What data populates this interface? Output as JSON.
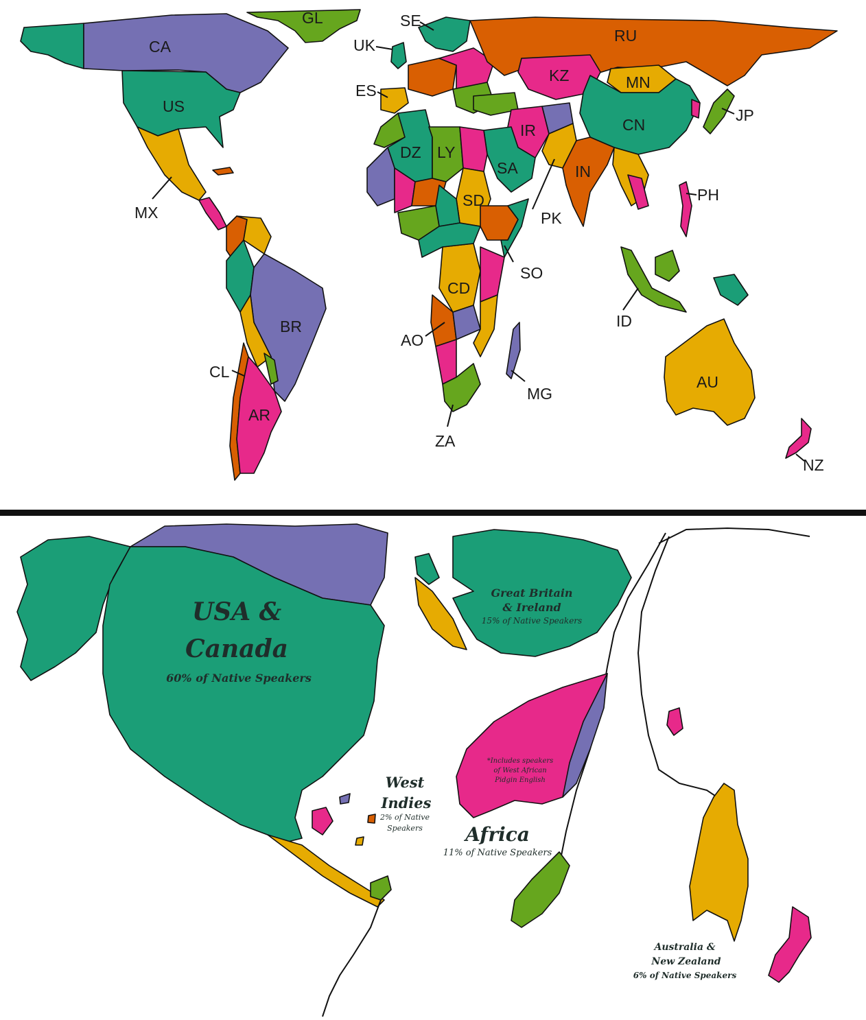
{
  "colors": {
    "green": "#1b9e77",
    "orange": "#d95f02",
    "purple": "#7570b3",
    "pink": "#e7298a",
    "lime": "#66a61e",
    "yellow": "#e6ab02"
  },
  "top_map": {
    "labels": {
      "GL": "GL",
      "SE": "SE",
      "UK": "UK",
      "RU": "RU",
      "CA": "CA",
      "KZ": "KZ",
      "MN": "MN",
      "ES": "ES",
      "US": "US",
      "JP": "JP",
      "CN": "CN",
      "IR": "IR",
      "DZ": "DZ",
      "LY": "LY",
      "SA": "SA",
      "IN": "IN",
      "MX": "MX",
      "PH": "PH",
      "SD": "SD",
      "PK": "PK",
      "SO": "SO",
      "CD": "CD",
      "BR": "BR",
      "ID": "ID",
      "AO": "AO",
      "CL": "CL",
      "MG": "MG",
      "AU": "AU",
      "AR": "AR",
      "ZA": "ZA",
      "NZ": "NZ"
    }
  },
  "bottom_map": {
    "usa_canada": {
      "title_line1": "USA &",
      "title_line2": "Canada",
      "share": "60% of Native Speakers"
    },
    "gb_ireland": {
      "title_line1": "Great Britain",
      "title_line2": "& Ireland",
      "share": "15% of Native Speakers"
    },
    "west_indies": {
      "title_line1": "West",
      "title_line2": "Indies",
      "share_line1": "2% of Native",
      "share_line2": "Speakers"
    },
    "africa": {
      "title": "Africa",
      "share": "11% of Native Speakers",
      "note_line1": "*Includes speakers",
      "note_line2": "of West African",
      "note_line3": "Pidgin English"
    },
    "australia_nz": {
      "title_line1": "Australia &",
      "title_line2": "New Zealand",
      "share": "6% of Native Speakers"
    }
  }
}
